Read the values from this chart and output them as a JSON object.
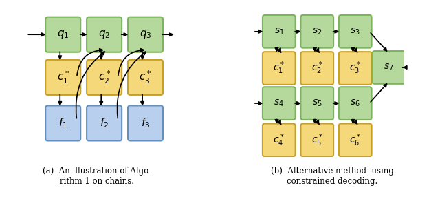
{
  "fig_width": 6.4,
  "fig_height": 2.92,
  "dpi": 100,
  "green_fc": "#b5d99c",
  "green_ec": "#7ab55a",
  "yellow_fc": "#f5d87a",
  "yellow_ec": "#c8a020",
  "blue_fc": "#b8d0ee",
  "blue_ec": "#6090c0",
  "caption_a": "(a)  An illustration of Algo-\nrithm 1 on chains.",
  "caption_b": "(b)  Alternative method  using\nconstrained decoding."
}
